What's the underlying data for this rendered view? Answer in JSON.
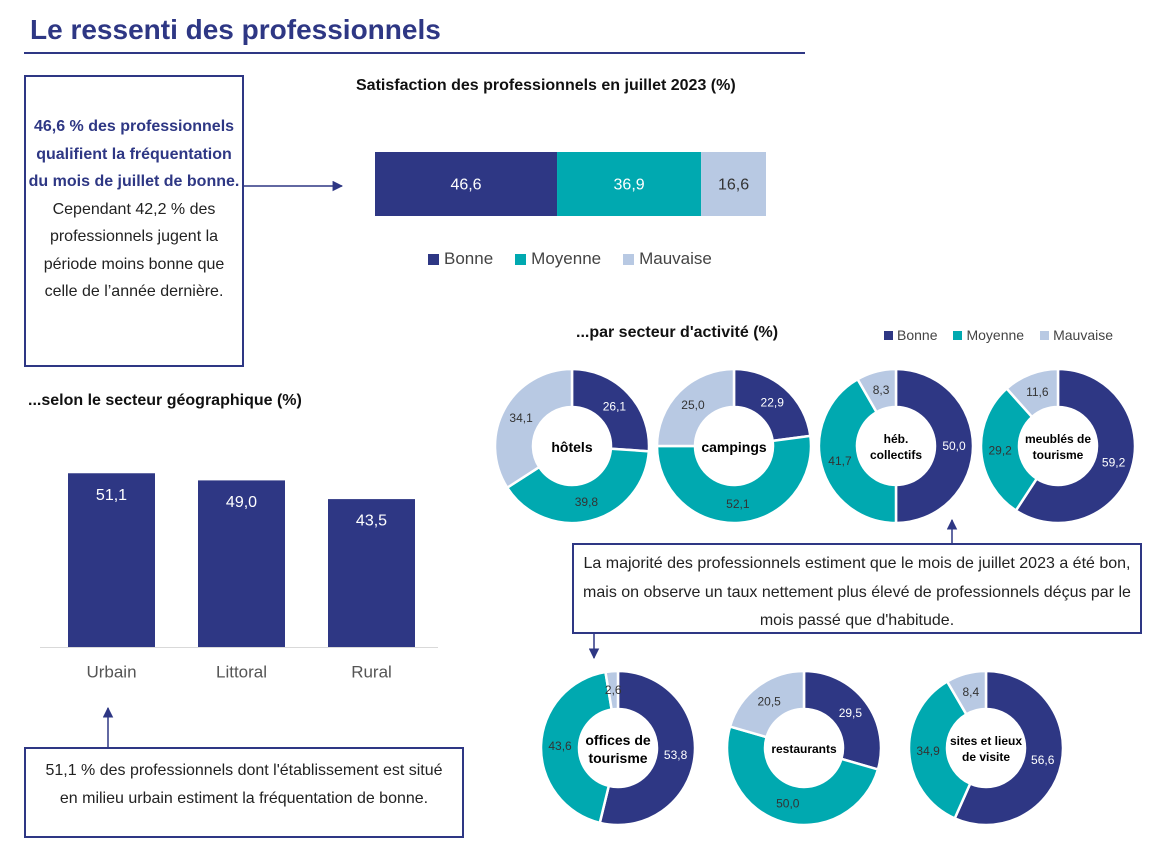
{
  "page": {
    "title": "Le ressenti des professionnels"
  },
  "summary": {
    "highlight": "46,6 % des professionnels qualifient la fréquentation du mois de juillet de bonne.",
    "text": "Cependant 42,2 % des professionnels jugent la période moins bonne que celle de l’année dernière."
  },
  "colors": {
    "bonne": "#2e3784",
    "moyenne": "#00a9b0",
    "mauvaise": "#b8c9e3",
    "navy": "#2e3784"
  },
  "legend": [
    "Bonne",
    "Moyenne",
    "Mauvaise"
  ],
  "headings": {
    "stacked": "Satisfaction des professionnels en juillet 2023 (%)",
    "sector": "...par secteur d'activité (%)",
    "geo": "...selon le secteur géographique (%)"
  },
  "callouts": {
    "geo": "51,1 % des professionnels dont l'établissement est situé en milieu urbain estiment la fréquentation de bonne.",
    "sector": "La majorité des professionnels estiment que le mois de juillet 2023 a été bon, mais on observe un taux nettement plus élevé de professionnels déçus par le mois passé que d'habitude."
  },
  "chart_data": [
    {
      "type": "bar",
      "orientation": "horizontal-stacked",
      "title": "Satisfaction des professionnels en juillet 2023 (%)",
      "series": [
        {
          "name": "Bonne",
          "value": 46.6,
          "label": "46,6"
        },
        {
          "name": "Moyenne",
          "value": 36.9,
          "label": "36,9"
        },
        {
          "name": "Mauvaise",
          "value": 16.6,
          "label": "16,6"
        }
      ],
      "legend_position": "bottom"
    },
    {
      "type": "bar",
      "title": "...selon le secteur géographique (%)",
      "categories": [
        "Urbain",
        "Littoral",
        "Rural"
      ],
      "values": [
        51.1,
        49.0,
        43.5
      ],
      "labels": [
        "51,1",
        "49,0",
        "43,5"
      ],
      "ylim": [
        0,
        60
      ],
      "grid": false
    },
    {
      "type": "pie",
      "variant": "donut",
      "title": "...par secteur d'activité (%)",
      "legend_position": "top-right",
      "series_names": [
        "Bonne",
        "Moyenne",
        "Mauvaise"
      ],
      "sectors": [
        {
          "name": "hôtels",
          "values": [
            26.1,
            39.8,
            34.1
          ],
          "labels": [
            "26,1",
            "39,8",
            "34,1"
          ]
        },
        {
          "name": "campings",
          "values": [
            22.9,
            52.1,
            25.0
          ],
          "labels": [
            "22,9",
            "52,1",
            "25,0"
          ]
        },
        {
          "name": "héb. collectifs",
          "values": [
            50.0,
            41.7,
            8.3
          ],
          "labels": [
            "50,0",
            "41,7",
            "8,3"
          ]
        },
        {
          "name": "meublés de tourisme",
          "values": [
            59.2,
            29.2,
            11.6
          ],
          "labels": [
            "59,2",
            "29,2",
            "11,6"
          ]
        },
        {
          "name": "offices de tourisme",
          "values": [
            53.8,
            43.6,
            2.6
          ],
          "labels": [
            "53,8",
            "43,6",
            "2,6"
          ]
        },
        {
          "name": "restaurants",
          "values": [
            29.5,
            50.0,
            20.5
          ],
          "labels": [
            "29,5",
            "50,0",
            "20,5"
          ]
        },
        {
          "name": "sites et lieux de visite",
          "values": [
            56.6,
            34.9,
            8.4
          ],
          "labels": [
            "56,6",
            "34,9",
            "8,4"
          ]
        }
      ]
    }
  ]
}
